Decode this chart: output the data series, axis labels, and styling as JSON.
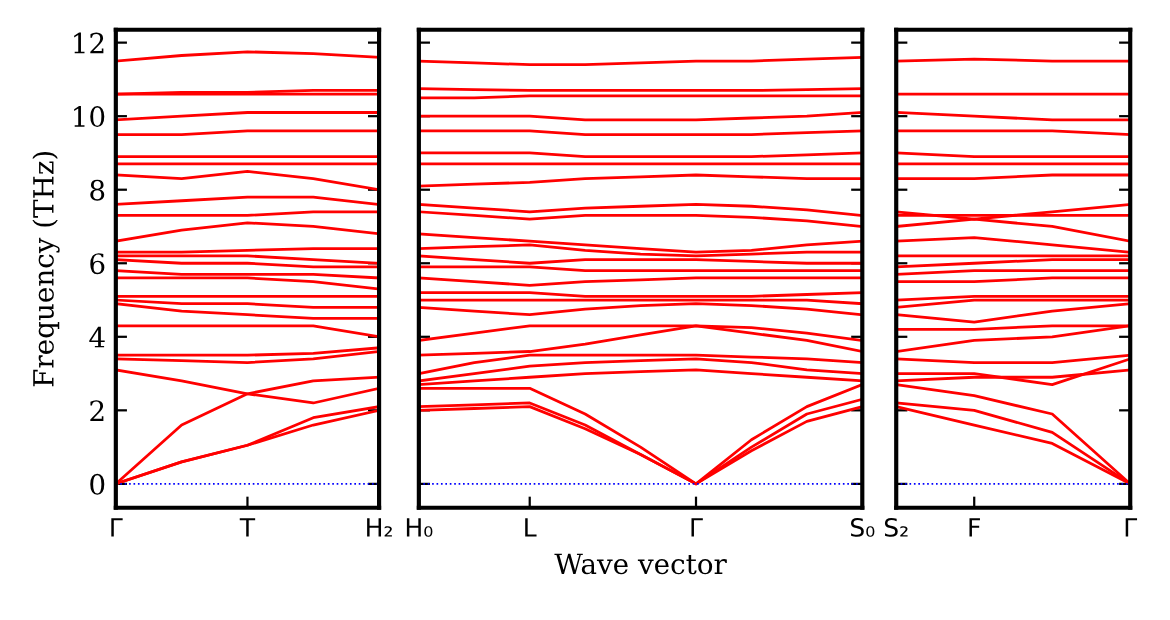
{
  "chart_data": [
    {
      "type": "line",
      "ylabel": "Frequency (THz)",
      "categories": [
        "Γ",
        null,
        "T",
        null,
        "H₂"
      ],
      "ylim": [
        -0.65,
        12.35
      ],
      "yticks": [
        0,
        2,
        4,
        6,
        8,
        10,
        12
      ],
      "grid": false,
      "legend": false,
      "marker": "none",
      "line_style": "solid",
      "ref_lines": [
        {
          "axis": "y",
          "value": 0,
          "color": "#0000ff",
          "line_style": "dotted"
        }
      ],
      "series": [
        {
          "color": "#ff0000",
          "values": [
            0,
            0.6,
            1.05,
            1.6,
            2.0
          ]
        },
        {
          "color": "#ff0000",
          "values": [
            0,
            0.6,
            1.05,
            1.8,
            2.1
          ]
        },
        {
          "color": "#ff0000",
          "values": [
            0,
            1.6,
            2.45,
            2.8,
            2.9
          ]
        },
        {
          "color": "#ff0000",
          "values": [
            3.1,
            2.8,
            2.45,
            2.2,
            2.6
          ]
        },
        {
          "color": "#ff0000",
          "values": [
            3.4,
            3.35,
            3.3,
            3.4,
            3.6
          ]
        },
        {
          "color": "#ff0000",
          "values": [
            3.5,
            3.5,
            3.5,
            3.55,
            3.7
          ]
        },
        {
          "color": "#ff0000",
          "values": [
            4.3,
            4.3,
            4.3,
            4.3,
            4.0
          ]
        },
        {
          "color": "#ff0000",
          "values": [
            4.9,
            4.7,
            4.6,
            4.5,
            4.5
          ]
        },
        {
          "color": "#ff0000",
          "values": [
            5.0,
            4.9,
            4.9,
            4.8,
            4.8
          ]
        },
        {
          "color": "#ff0000",
          "values": [
            5.1,
            5.1,
            5.1,
            5.1,
            5.1
          ]
        },
        {
          "color": "#ff0000",
          "values": [
            5.6,
            5.6,
            5.6,
            5.5,
            5.3
          ]
        },
        {
          "color": "#ff0000",
          "values": [
            5.8,
            5.7,
            5.7,
            5.7,
            5.6
          ]
        },
        {
          "color": "#ff0000",
          "values": [
            6.1,
            6.0,
            6.0,
            5.9,
            5.9
          ]
        },
        {
          "color": "#ff0000",
          "values": [
            6.2,
            6.2,
            6.2,
            6.1,
            6.0
          ]
        },
        {
          "color": "#ff0000",
          "values": [
            6.3,
            6.3,
            6.35,
            6.4,
            6.4
          ]
        },
        {
          "color": "#ff0000",
          "values": [
            6.6,
            6.9,
            7.1,
            7.0,
            6.8
          ]
        },
        {
          "color": "#ff0000",
          "values": [
            7.3,
            7.3,
            7.3,
            7.4,
            7.4
          ]
        },
        {
          "color": "#ff0000",
          "values": [
            7.6,
            7.7,
            7.8,
            7.8,
            7.6
          ]
        },
        {
          "color": "#ff0000",
          "values": [
            8.4,
            8.3,
            8.5,
            8.3,
            8.0
          ]
        },
        {
          "color": "#ff0000",
          "values": [
            8.7,
            8.7,
            8.7,
            8.7,
            8.7
          ]
        },
        {
          "color": "#ff0000",
          "values": [
            8.9,
            8.9,
            8.9,
            8.9,
            8.9
          ]
        },
        {
          "color": "#ff0000",
          "values": [
            9.5,
            9.5,
            9.6,
            9.6,
            9.6
          ]
        },
        {
          "color": "#ff0000",
          "values": [
            9.9,
            10.0,
            10.1,
            10.1,
            10.1
          ]
        },
        {
          "color": "#ff0000",
          "values": [
            10.6,
            10.6,
            10.6,
            10.6,
            10.6
          ]
        },
        {
          "color": "#ff0000",
          "values": [
            10.6,
            10.65,
            10.65,
            10.7,
            10.7
          ]
        },
        {
          "color": "#ff0000",
          "values": [
            11.5,
            11.65,
            11.75,
            11.7,
            11.6
          ]
        }
      ]
    },
    {
      "type": "line",
      "xlabel": "Wave vector",
      "categories": [
        "H₀",
        null,
        "L",
        null,
        null,
        "Γ",
        null,
        null,
        "S₀"
      ],
      "ylim": [
        -0.65,
        12.35
      ],
      "tick_labels": "x",
      "grid": false,
      "legend": false,
      "marker": "none",
      "line_style": "solid",
      "ref_lines": [
        {
          "axis": "y",
          "value": 0,
          "color": "#0000ff",
          "line_style": "dotted"
        }
      ],
      "series": [
        {
          "color": "#ff0000",
          "values": [
            2.0,
            2.05,
            2.1,
            1.5,
            0.8,
            0,
            0.9,
            1.7,
            2.1
          ]
        },
        {
          "color": "#ff0000",
          "values": [
            2.1,
            2.15,
            2.2,
            1.6,
            0.8,
            0,
            1.0,
            1.9,
            2.3
          ]
        },
        {
          "color": "#ff0000",
          "values": [
            2.6,
            2.6,
            2.6,
            1.9,
            1.0,
            0,
            1.2,
            2.1,
            2.7
          ]
        },
        {
          "color": "#ff0000",
          "values": [
            2.7,
            2.8,
            2.9,
            3.0,
            3.05,
            3.1,
            3.0,
            2.9,
            2.8
          ]
        },
        {
          "color": "#ff0000",
          "values": [
            2.8,
            3.0,
            3.2,
            3.3,
            3.35,
            3.4,
            3.3,
            3.1,
            3.0
          ]
        },
        {
          "color": "#ff0000",
          "values": [
            3.0,
            3.3,
            3.5,
            3.5,
            3.5,
            3.5,
            3.45,
            3.4,
            3.3
          ]
        },
        {
          "color": "#ff0000",
          "values": [
            3.5,
            3.55,
            3.6,
            3.8,
            4.05,
            4.3,
            4.1,
            3.9,
            3.6
          ]
        },
        {
          "color": "#ff0000",
          "values": [
            3.9,
            4.1,
            4.3,
            4.3,
            4.3,
            4.3,
            4.25,
            4.1,
            3.9
          ]
        },
        {
          "color": "#ff0000",
          "values": [
            4.8,
            4.7,
            4.6,
            4.75,
            4.85,
            4.9,
            4.85,
            4.75,
            4.6
          ]
        },
        {
          "color": "#ff0000",
          "values": [
            5.0,
            5.0,
            5.0,
            5.0,
            5.0,
            5.0,
            5.0,
            5.0,
            4.9
          ]
        },
        {
          "color": "#ff0000",
          "values": [
            5.2,
            5.2,
            5.2,
            5.1,
            5.1,
            5.1,
            5.1,
            5.15,
            5.2
          ]
        },
        {
          "color": "#ff0000",
          "values": [
            5.6,
            5.5,
            5.4,
            5.5,
            5.55,
            5.6,
            5.6,
            5.6,
            5.6
          ]
        },
        {
          "color": "#ff0000",
          "values": [
            5.9,
            5.9,
            5.9,
            5.8,
            5.8,
            5.8,
            5.8,
            5.8,
            5.8
          ]
        },
        {
          "color": "#ff0000",
          "values": [
            6.2,
            6.1,
            6.0,
            6.1,
            6.1,
            6.1,
            6.05,
            6.0,
            6.0
          ]
        },
        {
          "color": "#ff0000",
          "values": [
            6.4,
            6.45,
            6.5,
            6.35,
            6.25,
            6.2,
            6.25,
            6.3,
            6.3
          ]
        },
        {
          "color": "#ff0000",
          "values": [
            6.8,
            6.7,
            6.6,
            6.5,
            6.4,
            6.3,
            6.35,
            6.5,
            6.6
          ]
        },
        {
          "color": "#ff0000",
          "values": [
            7.4,
            7.3,
            7.2,
            7.3,
            7.3,
            7.3,
            7.25,
            7.15,
            7.0
          ]
        },
        {
          "color": "#ff0000",
          "values": [
            7.6,
            7.5,
            7.4,
            7.5,
            7.55,
            7.6,
            7.55,
            7.45,
            7.3
          ]
        },
        {
          "color": "#ff0000",
          "values": [
            8.1,
            8.15,
            8.2,
            8.3,
            8.35,
            8.4,
            8.35,
            8.3,
            8.3
          ]
        },
        {
          "color": "#ff0000",
          "values": [
            8.7,
            8.7,
            8.7,
            8.7,
            8.7,
            8.7,
            8.7,
            8.7,
            8.7
          ]
        },
        {
          "color": "#ff0000",
          "values": [
            9.0,
            9.0,
            9.0,
            8.9,
            8.9,
            8.9,
            8.9,
            8.95,
            9.0
          ]
        },
        {
          "color": "#ff0000",
          "values": [
            9.6,
            9.6,
            9.6,
            9.5,
            9.5,
            9.5,
            9.5,
            9.55,
            9.6
          ]
        },
        {
          "color": "#ff0000",
          "values": [
            10.0,
            10.0,
            10.0,
            9.9,
            9.9,
            9.9,
            9.95,
            10.0,
            10.1
          ]
        },
        {
          "color": "#ff0000",
          "values": [
            10.5,
            10.5,
            10.55,
            10.55,
            10.55,
            10.55,
            10.55,
            10.55,
            10.55
          ]
        },
        {
          "color": "#ff0000",
          "values": [
            10.75,
            10.72,
            10.7,
            10.7,
            10.7,
            10.7,
            10.7,
            10.72,
            10.75
          ]
        },
        {
          "color": "#ff0000",
          "values": [
            11.5,
            11.45,
            11.4,
            11.4,
            11.45,
            11.5,
            11.5,
            11.55,
            11.6
          ]
        }
      ]
    },
    {
      "type": "line",
      "categories": [
        "S₂",
        "F",
        null,
        "Γ"
      ],
      "ylim": [
        -0.65,
        12.35
      ],
      "tick_labels": "x",
      "grid": false,
      "legend": false,
      "marker": "none",
      "line_style": "solid",
      "ref_lines": [
        {
          "axis": "y",
          "value": 0,
          "color": "#0000ff",
          "line_style": "dotted"
        }
      ],
      "series": [
        {
          "color": "#ff0000",
          "values": [
            2.1,
            1.6,
            1.1,
            0
          ]
        },
        {
          "color": "#ff0000",
          "values": [
            2.2,
            2.0,
            1.4,
            0
          ]
        },
        {
          "color": "#ff0000",
          "values": [
            2.7,
            2.4,
            1.9,
            0
          ]
        },
        {
          "color": "#ff0000",
          "values": [
            2.8,
            2.9,
            2.9,
            3.1
          ]
        },
        {
          "color": "#ff0000",
          "values": [
            3.0,
            3.0,
            2.7,
            3.4
          ]
        },
        {
          "color": "#ff0000",
          "values": [
            3.4,
            3.3,
            3.3,
            3.5
          ]
        },
        {
          "color": "#ff0000",
          "values": [
            3.6,
            3.9,
            4.0,
            4.3
          ]
        },
        {
          "color": "#ff0000",
          "values": [
            4.2,
            4.2,
            4.3,
            4.3
          ]
        },
        {
          "color": "#ff0000",
          "values": [
            4.6,
            4.4,
            4.7,
            4.9
          ]
        },
        {
          "color": "#ff0000",
          "values": [
            4.8,
            5.0,
            5.0,
            5.0
          ]
        },
        {
          "color": "#ff0000",
          "values": [
            5.0,
            5.1,
            5.1,
            5.1
          ]
        },
        {
          "color": "#ff0000",
          "values": [
            5.5,
            5.5,
            5.6,
            5.6
          ]
        },
        {
          "color": "#ff0000",
          "values": [
            5.7,
            5.8,
            5.8,
            5.8
          ]
        },
        {
          "color": "#ff0000",
          "values": [
            5.9,
            6.0,
            6.1,
            6.1
          ]
        },
        {
          "color": "#ff0000",
          "values": [
            6.2,
            6.2,
            6.2,
            6.2
          ]
        },
        {
          "color": "#ff0000",
          "values": [
            6.6,
            6.7,
            6.5,
            6.3
          ]
        },
        {
          "color": "#ff0000",
          "values": [
            7.0,
            7.2,
            7.0,
            6.6
          ]
        },
        {
          "color": "#ff0000",
          "values": [
            7.3,
            7.3,
            7.3,
            7.3
          ]
        },
        {
          "color": "#ff0000",
          "values": [
            7.4,
            7.2,
            7.4,
            7.6
          ]
        },
        {
          "color": "#ff0000",
          "values": [
            8.3,
            8.3,
            8.4,
            8.4
          ]
        },
        {
          "color": "#ff0000",
          "values": [
            8.7,
            8.7,
            8.7,
            8.7
          ]
        },
        {
          "color": "#ff0000",
          "values": [
            9.0,
            8.9,
            8.9,
            8.9
          ]
        },
        {
          "color": "#ff0000",
          "values": [
            9.6,
            9.6,
            9.6,
            9.5
          ]
        },
        {
          "color": "#ff0000",
          "values": [
            10.1,
            10.0,
            9.9,
            9.9
          ]
        },
        {
          "color": "#ff0000",
          "values": [
            10.6,
            10.6,
            10.6,
            10.6
          ]
        },
        {
          "color": "#ff0000",
          "values": [
            11.5,
            11.55,
            11.5,
            11.5
          ]
        }
      ]
    }
  ]
}
